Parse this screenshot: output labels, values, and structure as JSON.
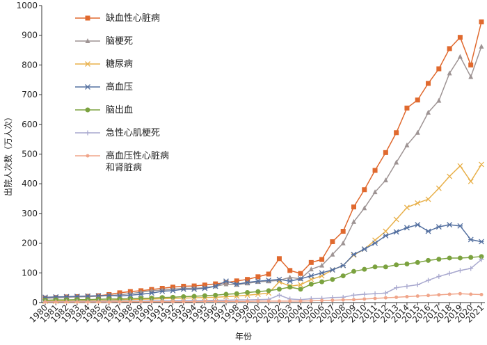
{
  "chart_data": {
    "type": "line",
    "xlabel": "年份",
    "ylabel": "出院人次数（万人次）",
    "categories": [
      "1980",
      "1981",
      "1982",
      "1983",
      "1984",
      "1985",
      "1986",
      "1987",
      "1988",
      "1989",
      "1990",
      "1991",
      "1992",
      "1993",
      "1994",
      "1995",
      "1996",
      "1997",
      "1998",
      "1999",
      "2000",
      "2001",
      "2002",
      "2003",
      "2004",
      "2005",
      "2006",
      "2007",
      "2008",
      "2009",
      "2010",
      "2011",
      "2012",
      "2013",
      "2014",
      "2015",
      "2016",
      "2017",
      "2018",
      "2019",
      "2020",
      "2021"
    ],
    "ylim": [
      0,
      1000
    ],
    "yticks": [
      0,
      100,
      200,
      300,
      400,
      500,
      600,
      700,
      800,
      900,
      1000
    ],
    "legend": "upper-left",
    "series": [
      {
        "name": "缺血性心脏病",
        "color": "#e0692e",
        "marker": "square",
        "values": [
          15,
          17,
          19,
          20,
          21,
          23,
          27,
          33,
          37,
          40,
          44,
          48,
          52,
          55,
          56,
          59,
          63,
          67,
          73,
          78,
          87,
          96,
          148,
          108,
          98,
          135,
          145,
          205,
          240,
          322,
          380,
          445,
          505,
          572,
          655,
          682,
          738,
          787,
          855,
          893,
          800,
          945
        ]
      },
      {
        "name": "脑梗死",
        "color": "#9e9494",
        "marker": "triangle",
        "values": [
          14,
          16,
          18,
          19,
          20,
          21,
          24,
          26,
          30,
          35,
          40,
          42,
          45,
          48,
          48,
          50,
          55,
          62,
          60,
          65,
          70,
          72,
          75,
          85,
          80,
          112,
          125,
          162,
          200,
          272,
          318,
          372,
          412,
          472,
          530,
          572,
          640,
          680,
          772,
          828,
          760,
          862
        ]
      },
      {
        "name": "糖尿病",
        "color": "#e8b04a",
        "marker": "x",
        "values": [
          5,
          5,
          6,
          6,
          7,
          7,
          8,
          9,
          10,
          11,
          12,
          13,
          14,
          15,
          16,
          17,
          18,
          20,
          22,
          25,
          28,
          32,
          70,
          55,
          60,
          78,
          90,
          110,
          125,
          160,
          180,
          210,
          240,
          280,
          320,
          335,
          348,
          385,
          425,
          460,
          408,
          465
        ]
      },
      {
        "name": "高血压",
        "color": "#5470a0",
        "marker": "asterisk",
        "values": [
          18,
          19,
          20,
          21,
          22,
          23,
          24,
          22,
          25,
          28,
          32,
          38,
          40,
          45,
          45,
          48,
          55,
          72,
          62,
          68,
          72,
          75,
          78,
          72,
          80,
          90,
          100,
          110,
          125,
          162,
          180,
          200,
          225,
          238,
          252,
          262,
          240,
          255,
          262,
          258,
          212,
          205
        ]
      },
      {
        "name": "脑出血",
        "color": "#7ba23f",
        "marker": "circle",
        "values": [
          8,
          9,
          9,
          10,
          10,
          11,
          12,
          12,
          13,
          14,
          15,
          17,
          18,
          20,
          21,
          23,
          25,
          28,
          30,
          34,
          37,
          40,
          45,
          52,
          45,
          62,
          70,
          78,
          90,
          105,
          112,
          120,
          120,
          127,
          130,
          135,
          142,
          146,
          150,
          150,
          152,
          155
        ]
      },
      {
        "name": "急性心肌梗死",
        "color": "#a9a9cf",
        "marker": "plus",
        "values": [
          3,
          3,
          3,
          4,
          4,
          4,
          5,
          5,
          5,
          5,
          6,
          6,
          6,
          7,
          7,
          7,
          8,
          8,
          9,
          9,
          10,
          11,
          25,
          12,
          10,
          13,
          14,
          17,
          18,
          25,
          28,
          30,
          32,
          50,
          55,
          60,
          75,
          88,
          98,
          108,
          115,
          145
        ]
      },
      {
        "name": "高血压性心脏病和肾脏病",
        "color": "#f0a58a",
        "marker": "dot",
        "values": [
          2,
          2,
          2,
          2,
          2,
          2,
          2,
          3,
          3,
          3,
          3,
          3,
          3,
          3,
          3,
          4,
          4,
          4,
          4,
          4,
          5,
          5,
          5,
          5,
          5,
          6,
          7,
          8,
          9,
          10,
          12,
          14,
          16,
          18,
          20,
          22,
          24,
          26,
          28,
          30,
          28,
          27
        ]
      }
    ]
  }
}
